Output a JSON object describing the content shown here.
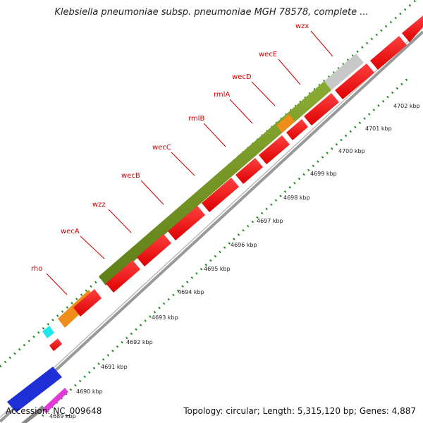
{
  "header": {
    "title": "Klebsiella pneumoniae subsp. pneumoniae MGH 78578, complete ..."
  },
  "footer": {
    "accession": "Accession: NC_009648",
    "stats": "Topology: circular; Length: 5,315,120 bp; Genes: 4,887"
  },
  "colors": {
    "cds": "#ee1111",
    "cds_dark": "#aa0000",
    "cluster": "#6f8f22",
    "rho": "#f08c1a",
    "grey_feature": "#c8c8c8",
    "backbone": "#888888",
    "gc_ticks": "#1f8a1f",
    "label": "#cc0000",
    "blue_feature": "#1f2fd6",
    "cyan_feature": "#22e6ee",
    "magenta_feature": "#e23ad8"
  },
  "gene_labels": [
    "rho",
    "wecA",
    "wzz",
    "wecB",
    "wecC",
    "rmlB",
    "rmlA",
    "wecD",
    "wecE",
    "wzx"
  ],
  "kbp_ticks": [
    "4689 kbp",
    "4690 kbp",
    "4691 kbp",
    "4692 kbp",
    "4693 kbp",
    "4694 kbp",
    "4695 kbp",
    "4696 kbp",
    "4697 kbp",
    "4698 kbp",
    "4699 kbp",
    "4700 kbp",
    "4701 kbp",
    "4702 kbp"
  ]
}
